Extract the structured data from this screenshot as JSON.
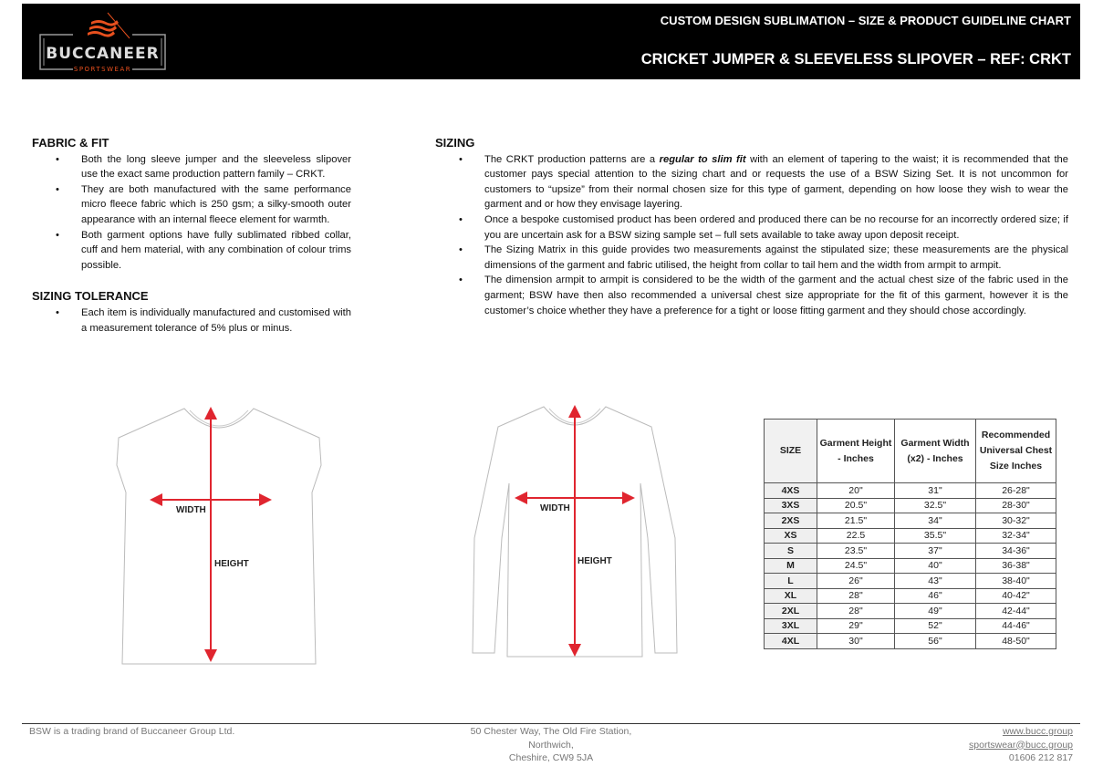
{
  "header": {
    "logo_text": "BUCCANEER",
    "logo_sub": "SPORTSWEAR",
    "title": "CUSTOM DESIGN SUBLIMATION – SIZE & PRODUCT GUIDELINE CHART",
    "subtitle": "CRICKET JUMPER & SLEEVELESS SLIPOVER – REF: CRKT"
  },
  "fabric": {
    "heading": "FABRIC & FIT",
    "items": [
      "Both the long sleeve jumper and the sleeveless slipover use the exact same production pattern family – CRKT.",
      "They are both manufactured with the same performance micro fleece fabric which is 250 gsm; a silky-smooth outer appearance with an internal fleece element for warmth.",
      "Both garment options have fully sublimated ribbed collar, cuff and hem material, with any combination of colour trims possible."
    ]
  },
  "tolerance": {
    "heading": "SIZING TOLERANCE",
    "items": [
      "Each item is individually manufactured and customised with a measurement tolerance of 5% plus or minus."
    ]
  },
  "sizing": {
    "heading": "SIZING",
    "item1_pre": "The CRKT production patterns are a ",
    "item1_em": "regular to slim fit",
    "item1_post": " with an element of tapering to the waist; it is recommended that the customer pays special attention to the sizing chart and or requests the use of a BSW Sizing Set. It is not uncommon for customers to “upsize” from their normal chosen size for this type of garment, depending on how loose they wish to wear the garment and or how they envisage layering.",
    "items": [
      "Once a bespoke customised product has been ordered and produced there can be no recourse for an incorrectly ordered size; if you are uncertain ask for a BSW sizing sample set – full sets available to take away upon deposit receipt.",
      "The Sizing Matrix in this guide provides two measurements against the stipulated size; these measurements are the physical dimensions of the garment and fabric utilised, the height from collar to tail hem and the width from armpit to armpit.",
      "The dimension armpit to armpit is considered to be the width of the garment and the actual chest size of the fabric used in the garment; BSW have then also recommended a universal chest size appropriate for the fit of this garment, however it is the customer’s choice whether they have a preference for a tight or loose fitting garment and they should chose accordingly."
    ]
  },
  "diagram": {
    "width_label": "WIDTH",
    "height_label": "HEIGHT",
    "arrow_color": "#e0252f"
  },
  "table": {
    "headers": [
      "SIZE",
      "Garment Height - Inches",
      "Garment Width (x2) - Inches",
      "Recommended Universal Chest Size Inches"
    ],
    "rows": [
      [
        "4XS",
        "20\"",
        "31\"",
        "26-28\""
      ],
      [
        "3XS",
        "20.5\"",
        "32.5\"",
        "28-30\""
      ],
      [
        "2XS",
        "21.5\"",
        "34\"",
        "30-32\""
      ],
      [
        "XS",
        "22.5",
        "35.5\"",
        "32-34\""
      ],
      [
        "S",
        "23.5\"",
        "37\"",
        "34-36\""
      ],
      [
        "M",
        "24.5\"",
        "40\"",
        "36-38\""
      ],
      [
        "L",
        "26\"",
        "43\"",
        "38-40\""
      ],
      [
        "XL",
        "28\"",
        "46\"",
        "40-42\""
      ],
      [
        "2XL",
        "28\"",
        "49\"",
        "42-44\""
      ],
      [
        "3XL",
        "29\"",
        "52\"",
        "44-46\""
      ],
      [
        "4XL",
        "30\"",
        "56\"",
        "48-50\""
      ]
    ]
  },
  "footer": {
    "brand": "BSW is a trading brand of Buccaneer Group Ltd.",
    "address": [
      "50 Chester Way, The Old Fire Station,",
      "Northwich,",
      "Cheshire, CW9 5JA"
    ],
    "website": "www.bucc.group",
    "email": "sportswear@bucc.group",
    "phone": "01606 212 817"
  },
  "colors": {
    "header_bg": "#000000",
    "brand_orange": "#e8501e"
  }
}
